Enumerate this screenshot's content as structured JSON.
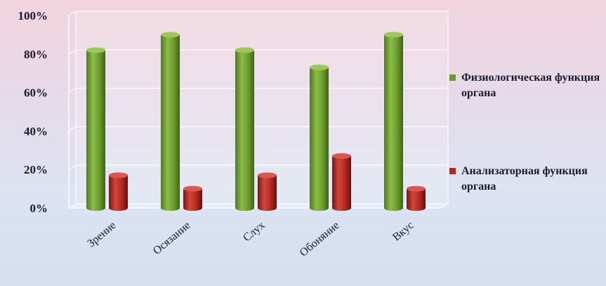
{
  "chart_data": {
    "type": "bar",
    "categories": [
      "Зрение",
      "Осязание",
      "Слух",
      "Обоняние",
      "Вкус"
    ],
    "series": [
      {
        "name": "Физиологическая функция органа",
        "values": [
          82,
          90,
          82,
          73,
          90
        ],
        "color": "#6a9a2c"
      },
      {
        "name": "Анализаторная функция органа",
        "values": [
          17,
          10,
          17,
          27,
          10
        ],
        "color": "#b1261f"
      }
    ],
    "yticks": [
      "0%",
      "20%",
      "40%",
      "60%",
      "80%",
      "100%"
    ],
    "ylim": [
      0,
      100
    ],
    "legend_position": "right",
    "grid": true
  }
}
